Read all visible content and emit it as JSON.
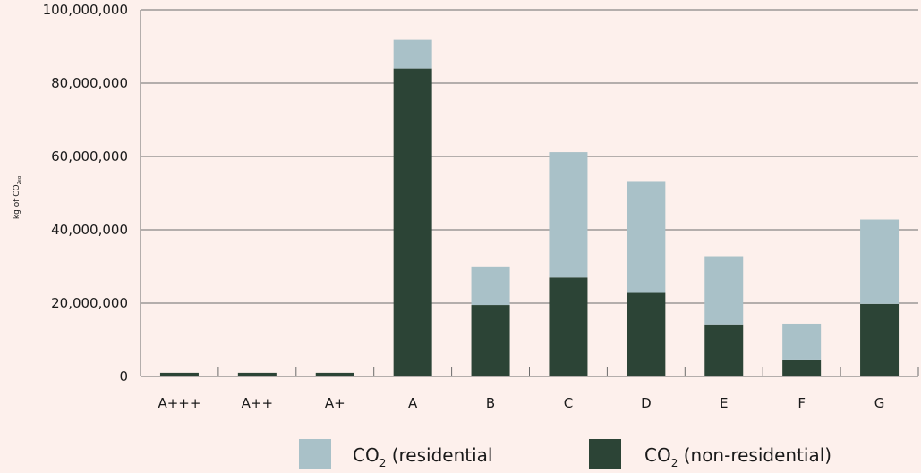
{
  "chart_data": {
    "type": "bar",
    "stacked": true,
    "categories": [
      "A+++",
      "A++",
      "A+",
      "A",
      "B",
      "C",
      "D",
      "E",
      "F",
      "G"
    ],
    "series": [
      {
        "name": "CO2 (non-residential)",
        "legend_main": "CO",
        "legend_sub": "2",
        "legend_rest": " (non-residential)",
        "color": "#2c4436",
        "values": [
          1000000,
          1000000,
          1000000,
          84000000,
          19500000,
          27000000,
          22800000,
          14200000,
          4400000,
          19800000
        ]
      },
      {
        "name": "CO2 (residential",
        "legend_main": "CO",
        "legend_sub": "2",
        "legend_rest": " (residential",
        "color": "#a9c1c8",
        "values": [
          0,
          0,
          0,
          7800000,
          10300000,
          34200000,
          30500000,
          18600000,
          10000000,
          23000000
        ]
      }
    ],
    "ylabel_main": "kg of CO",
    "ylabel_sub": "2eq",
    "ylim": [
      0,
      100000000
    ],
    "yticks": [
      0,
      20000000,
      40000000,
      60000000,
      80000000,
      100000000
    ],
    "ytick_labels": [
      "0",
      "20,000,000",
      "40,000,000",
      "60,000,000",
      "80,000,000",
      "100,000,000"
    ],
    "grid": true,
    "legend_position": "bottom"
  },
  "colors": {
    "background": "#fdf0ec",
    "grid": "#6b6b6b",
    "axis": "#6b6b6b"
  }
}
